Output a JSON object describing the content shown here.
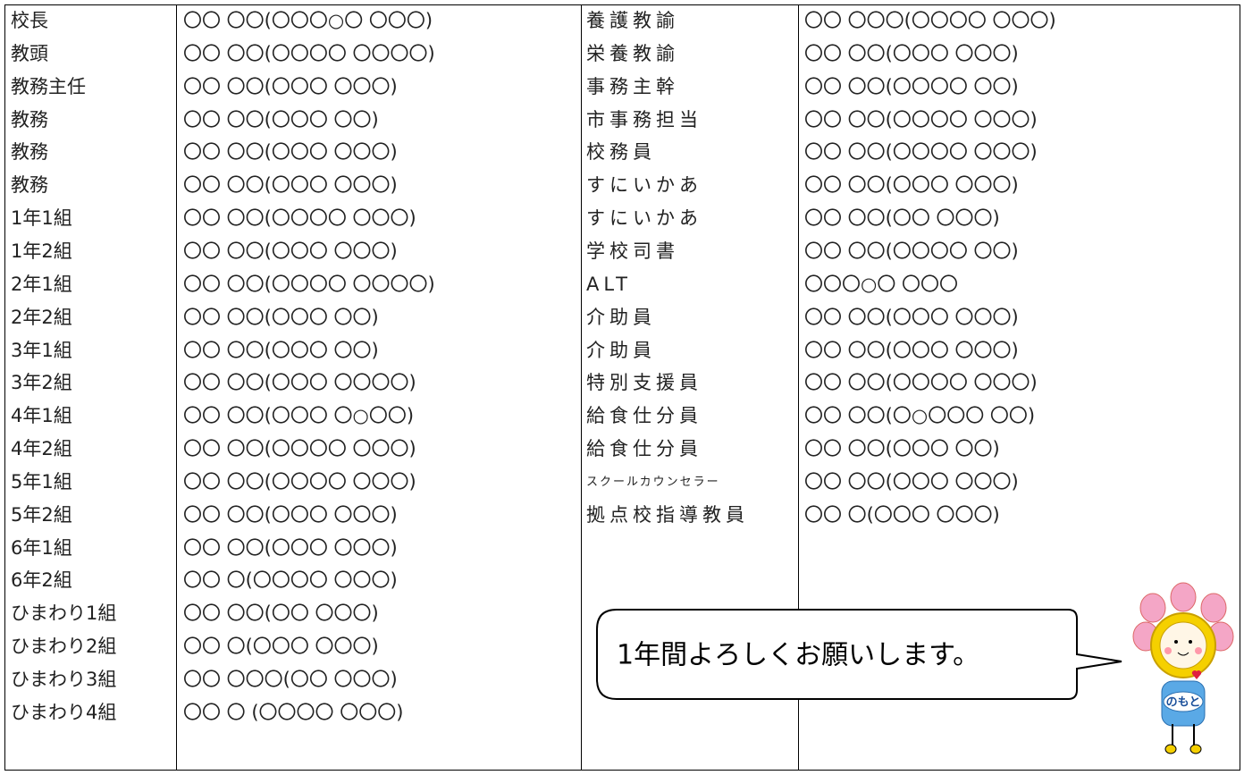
{
  "left_rows": [
    [
      "校長",
      "〇〇 〇〇(〇〇〇○〇 〇〇〇)"
    ],
    [
      "教頭",
      "〇〇 〇〇(〇〇〇〇 〇〇〇〇)"
    ],
    [
      "教務主任",
      "〇〇 〇〇(〇〇〇 〇〇〇)"
    ],
    [
      "教務",
      "〇〇 〇〇(〇〇〇 〇〇)"
    ],
    [
      "教務",
      "〇〇 〇〇(〇〇〇 〇〇〇)"
    ],
    [
      "教務",
      "〇〇 〇〇(〇〇〇 〇〇〇)"
    ],
    [
      "1年1組",
      "〇〇 〇〇(〇〇〇〇 〇〇〇)"
    ],
    [
      "1年2組",
      "〇〇 〇〇(〇〇〇 〇〇〇)"
    ],
    [
      "2年1組",
      "〇〇 〇〇(〇〇〇〇 〇〇〇〇)"
    ],
    [
      "2年2組",
      "〇〇 〇〇(〇〇〇 〇〇)"
    ],
    [
      "3年1組",
      "〇〇 〇〇(〇〇〇 〇〇)"
    ],
    [
      "3年2組",
      "〇〇 〇〇(〇〇〇 〇〇〇〇)"
    ],
    [
      "4年1組",
      "〇〇 〇〇(〇〇〇 〇○〇〇)"
    ],
    [
      "4年2組",
      "〇〇 〇〇(〇〇〇〇 〇〇〇)"
    ],
    [
      "5年1組",
      "〇〇 〇〇(〇〇〇〇 〇〇〇)"
    ],
    [
      "5年2組",
      "〇〇 〇〇(〇〇〇 〇〇〇)"
    ],
    [
      "6年1組",
      "〇〇 〇〇(〇〇〇 〇〇〇)"
    ],
    [
      "6年2組",
      "〇〇 〇(〇〇〇〇 〇〇〇)"
    ],
    [
      "ひまわり1組",
      "〇〇 〇〇(〇〇 〇〇〇)"
    ],
    [
      "ひまわり2組",
      "〇〇 〇(〇〇〇 〇〇〇)"
    ],
    [
      "ひまわり3組",
      "〇〇 〇〇〇(〇〇 〇〇〇)"
    ],
    [
      "ひまわり4組",
      "〇〇 〇 (〇〇〇〇 〇〇〇)"
    ]
  ],
  "right_rows": [
    [
      "養護教諭",
      "〇〇 〇〇〇(〇〇〇〇 〇〇〇)"
    ],
    [
      "栄養教諭",
      "〇〇 〇〇(〇〇〇 〇〇〇)"
    ],
    [
      "事務主幹",
      "〇〇 〇〇(〇〇〇〇 〇〇)"
    ],
    [
      "市事務担当",
      "〇〇 〇〇(〇〇〇〇 〇〇〇)"
    ],
    [
      "校務員",
      "〇〇 〇〇(〇〇〇〇 〇〇〇)"
    ],
    [
      "すにいかあ",
      "〇〇 〇〇(〇〇〇 〇〇〇)"
    ],
    [
      "すにいかあ",
      "〇〇 〇〇(〇〇 〇〇〇)"
    ],
    [
      "学校司書",
      "〇〇 〇〇(〇〇〇〇 〇〇)"
    ],
    [
      "ALT",
      "〇〇〇○〇 〇〇〇"
    ],
    [
      "介助員",
      "〇〇 〇〇(〇〇〇 〇〇〇)"
    ],
    [
      "介助員",
      "〇〇 〇〇(〇〇〇 〇〇〇)"
    ],
    [
      "特別支援員",
      "〇〇 〇〇(〇〇〇〇 〇〇〇)"
    ],
    [
      "給食仕分員",
      "〇〇 〇〇(〇○〇〇〇 〇〇)"
    ],
    [
      "給食仕分員",
      "〇〇 〇〇(〇〇〇 〇〇)"
    ],
    [
      "スクールカウンセラー",
      "〇〇 〇〇(〇〇〇 〇〇〇)"
    ],
    [
      "拠点校指導教員",
      "〇〇 〇(〇〇〇 〇〇〇)"
    ]
  ],
  "bubble_text": "1年間よろしくお願いします。",
  "mascot_label": "のもと"
}
